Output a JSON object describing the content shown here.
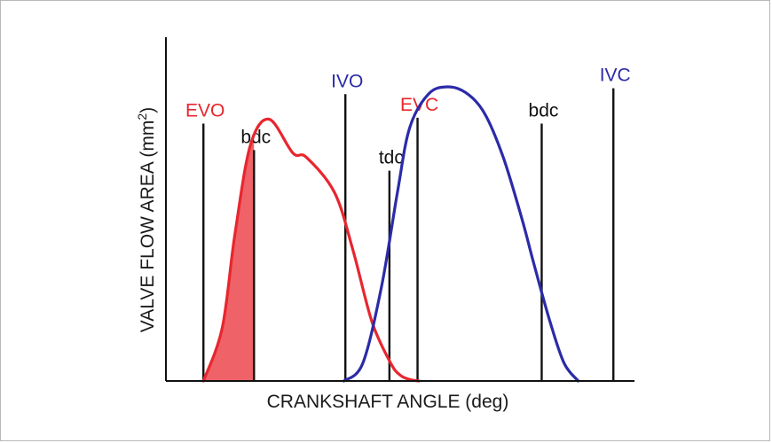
{
  "chart_data": {
    "type": "line",
    "title": "",
    "xlabel": "CRANKSHAFT ANGLE (deg)",
    "ylabel_main": "VALVE FLOW AREA (mm",
    "ylabel_sup": "2",
    "ylabel_close": ")",
    "xlim": [
      0,
      100
    ],
    "ylim": [
      0,
      100
    ],
    "grid": false,
    "legend": "none",
    "colors": {
      "exhaust": "#e8262e",
      "intake": "#2b2ba8",
      "marker": "#111111",
      "shade": "#e8262e"
    },
    "series": [
      {
        "key": "exhaust",
        "x": [
          8,
          12,
          14.7,
          18,
          22,
          27.1,
          30,
          36,
          40,
          44,
          48,
          50,
          52,
          54
        ],
        "y": [
          0,
          18,
          49.6,
          80,
          89,
          77.5,
          76,
          64,
          44,
          20,
          6,
          2,
          0.5,
          0
        ]
      },
      {
        "key": "intake",
        "x": [
          38,
          42,
          46,
          49.4,
          52,
          56,
          60,
          64,
          68,
          72,
          76,
          78.5,
          82,
          85,
          88
        ],
        "y": [
          0,
          6,
          32,
          64,
          86,
          97.5,
          100,
          98,
          91,
          76,
          55,
          40,
          20,
          6,
          0
        ]
      }
    ],
    "markers": [
      {
        "label": "EVO",
        "x": 8,
        "top": 87.5,
        "color": "#e8262e"
      },
      {
        "label": "bdc",
        "x": 18.8,
        "top": 78.5,
        "color": "#111111"
      },
      {
        "label": "IVO",
        "x": 38.3,
        "top": 97.5,
        "color": "#2b2ba8"
      },
      {
        "label": "tdc",
        "x": 47.7,
        "top": 71.5,
        "color": "#111111"
      },
      {
        "label": "EVC",
        "x": 53.7,
        "top": 89.5,
        "color": "#e8262e"
      },
      {
        "label": "bdc",
        "x": 80.2,
        "top": 87.5,
        "color": "#111111"
      },
      {
        "label": "IVC",
        "x": 95.5,
        "top": 99.5,
        "color": "#2b2ba8"
      }
    ],
    "shaded_region": {
      "series": "exhaust",
      "x_from": 8,
      "x_to": 18.8
    }
  }
}
